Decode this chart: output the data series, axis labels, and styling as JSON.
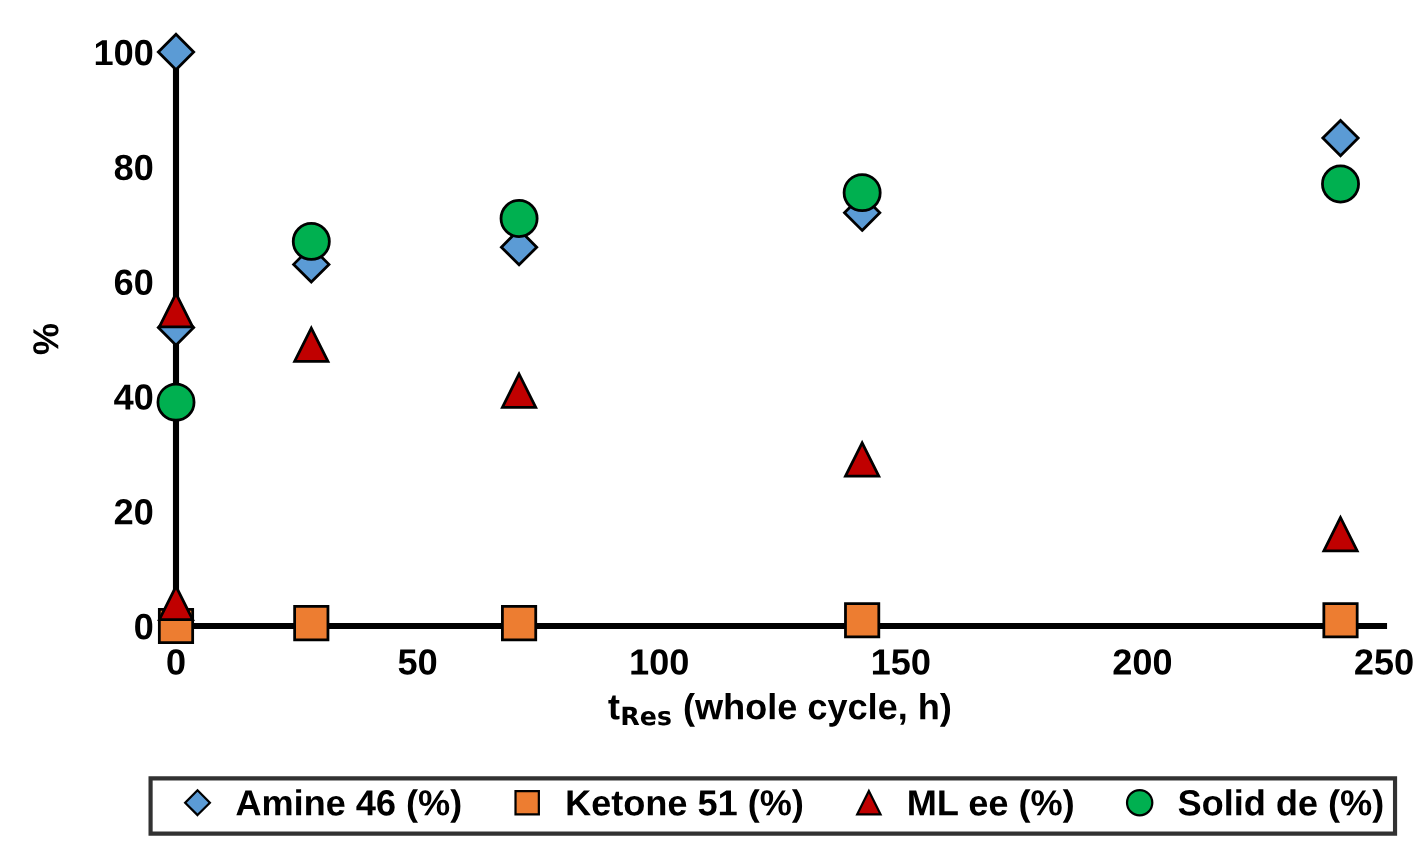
{
  "chart_data": {
    "type": "scatter",
    "xlabel": "t$_{Res}$ (whole cycle, h)",
    "ylabel": "%",
    "xlim": [
      0,
      250
    ],
    "xticks": [
      0,
      50,
      100,
      150,
      200,
      250
    ],
    "ylim": [
      0,
      100
    ],
    "yticks": [
      0,
      20,
      40,
      60,
      80,
      100
    ],
    "grid": false,
    "legend": "bottom",
    "series": [
      {
        "name": "Amine 46 (%)",
        "color": "#5b9bd5",
        "marker": "diamond",
        "x": [
          0,
          0,
          28,
          71,
          142,
          241
        ],
        "values": [
          100,
          52,
          63,
          66,
          72,
          85
        ]
      },
      {
        "name": "Ketone 51 (%)",
        "color": "#ed7d31",
        "marker": "square",
        "x": [
          0,
          28,
          71,
          142,
          241
        ],
        "values": [
          0,
          0.5,
          0.5,
          1,
          1
        ]
      },
      {
        "name": "ML ee (%)",
        "color": "#c00000",
        "marker": "triangle",
        "x": [
          0,
          0,
          28,
          71,
          142,
          241
        ],
        "values": [
          55,
          4,
          49,
          41,
          29,
          16
        ]
      },
      {
        "name": "Solid de (%)",
        "color": "#00b050",
        "marker": "circle",
        "x": [
          0,
          28,
          71,
          142,
          241
        ],
        "values": [
          39,
          67,
          71,
          75.5,
          77
        ]
      }
    ]
  }
}
